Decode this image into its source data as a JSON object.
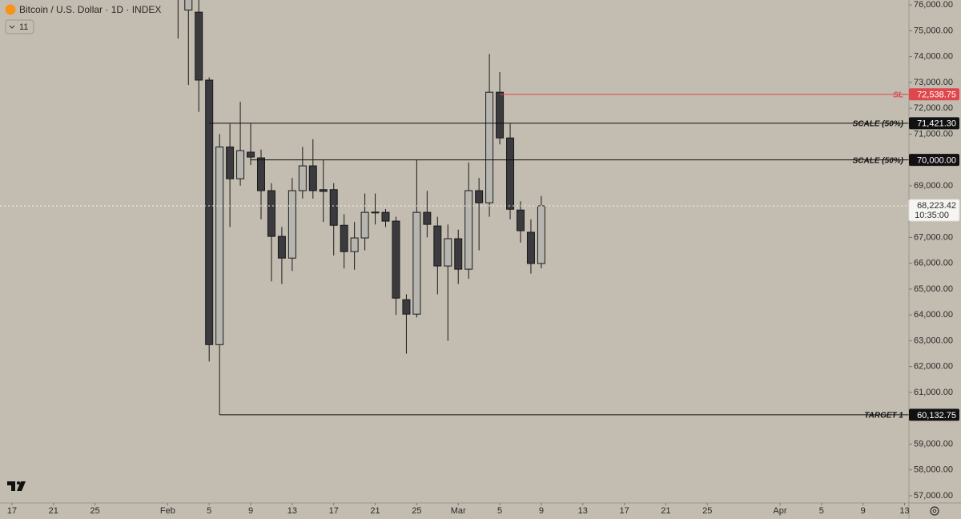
{
  "header": {
    "title": "Bitcoin / U.S. Dollar · 1D · INDEX",
    "indicator_count": 11
  },
  "chart_data": {
    "type": "candlestick",
    "x": [
      "02-02",
      "02-03",
      "02-04",
      "02-05",
      "02-06",
      "02-07",
      "02-08",
      "02-09",
      "02-10",
      "02-11",
      "02-12",
      "02-13",
      "02-14",
      "02-15",
      "02-16",
      "02-17",
      "02-18",
      "02-19",
      "02-20",
      "02-21",
      "02-22",
      "02-23",
      "02-24",
      "02-25",
      "02-26",
      "02-27",
      "02-28",
      "03-01",
      "03-02",
      "03-03",
      "03-04",
      "03-05",
      "03-06",
      "03-07",
      "03-08",
      "03-09"
    ],
    "open": [
      77200,
      75800,
      75720,
      73090,
      62850,
      70500,
      69270,
      70300,
      70080,
      68810,
      67040,
      66200,
      68810,
      69770,
      68850,
      68850,
      67470,
      66450,
      66980,
      67950,
      67970,
      67630,
      64590,
      64030,
      67970,
      67444,
      65894,
      66950,
      65770,
      68810,
      68340,
      72620,
      70850,
      68060,
      67200,
      65990
    ],
    "high": [
      78000,
      77000,
      76300,
      73200,
      71000,
      71400,
      72250,
      71400,
      70400,
      69100,
      67400,
      69300,
      70500,
      70800,
      70000,
      69100,
      67900,
      67600,
      68700,
      68700,
      68100,
      67800,
      64800,
      70000,
      68800,
      67800,
      67500,
      67300,
      69900,
      69300,
      74100,
      73400,
      71400,
      68400,
      67700,
      68600
    ],
    "low": [
      74700,
      72900,
      71860,
      62200,
      60130,
      67400,
      69000,
      69800,
      67700,
      65300,
      65200,
      65700,
      68500,
      68500,
      67600,
      66300,
      65800,
      65750,
      66500,
      67500,
      67400,
      64000,
      62500,
      63900,
      67000,
      64800,
      63000,
      65200,
      65400,
      66500,
      67800,
      70600,
      67700,
      66800,
      65600,
      65800
    ],
    "close": [
      76400,
      76500,
      73090,
      62850,
      70500,
      69270,
      70360,
      70110,
      68810,
      67040,
      66200,
      68810,
      69770,
      68810,
      68780,
      67470,
      66450,
      66980,
      67970,
      67980,
      67630,
      64650,
      64030,
      67970,
      67505,
      65894,
      66950,
      65770,
      68810,
      68340,
      72620,
      70850,
      68090,
      67260,
      65990,
      68223.42
    ],
    "colors": {
      "up": "#b7b5b0",
      "down": "#3a3a3f",
      "border": "#1a1a1a"
    },
    "xlim": [
      "01-16",
      "04-13"
    ],
    "xticks": [
      {
        "value": "01-17",
        "label": "17"
      },
      {
        "value": "01-21",
        "label": "21"
      },
      {
        "value": "01-25",
        "label": "25"
      },
      {
        "value": "02-01",
        "label": "Feb"
      },
      {
        "value": "02-05",
        "label": "5"
      },
      {
        "value": "02-09",
        "label": "9"
      },
      {
        "value": "02-13",
        "label": "13"
      },
      {
        "value": "02-17",
        "label": "17"
      },
      {
        "value": "02-21",
        "label": "21"
      },
      {
        "value": "02-25",
        "label": "25"
      },
      {
        "value": "03-01",
        "label": "Mar"
      },
      {
        "value": "03-05",
        "label": "5"
      },
      {
        "value": "03-09",
        "label": "9"
      },
      {
        "value": "03-13",
        "label": "13"
      },
      {
        "value": "03-17",
        "label": "17"
      },
      {
        "value": "03-21",
        "label": "21"
      },
      {
        "value": "03-25",
        "label": "25"
      },
      {
        "value": "04-01",
        "label": "Apr"
      },
      {
        "value": "04-05",
        "label": "5"
      },
      {
        "value": "04-09",
        "label": "9"
      },
      {
        "value": "04-13",
        "label": "13"
      }
    ],
    "ylim": [
      56720,
      76190
    ],
    "yticks": [
      {
        "value": 76000,
        "label": "76,000.00"
      },
      {
        "value": 75000,
        "label": "75,000.00"
      },
      {
        "value": 74000,
        "label": "74,000.00"
      },
      {
        "value": 73000,
        "label": "73,000.00"
      },
      {
        "value": 72000,
        "label": "72,000.00"
      },
      {
        "value": 71000,
        "label": "71,000.00"
      },
      {
        "value": 69000,
        "label": "69,000.00"
      },
      {
        "value": 67000,
        "label": "67,000.00"
      },
      {
        "value": 66000,
        "label": "66,000.00"
      },
      {
        "value": 65000,
        "label": "65,000.00"
      },
      {
        "value": 64000,
        "label": "64,000.00"
      },
      {
        "value": 63000,
        "label": "63,000.00"
      },
      {
        "value": 62000,
        "label": "62,000.00"
      },
      {
        "value": 61000,
        "label": "61,000.00"
      },
      {
        "value": 59000,
        "label": "59,000.00"
      },
      {
        "value": 58000,
        "label": "58,000.00"
      },
      {
        "value": 57000,
        "label": "57,000.00"
      }
    ],
    "lines": [
      {
        "label": "SL",
        "value": 72538.75,
        "value_label": "72,538.75",
        "start": "03-05",
        "color": "#e0474c"
      },
      {
        "label": "SCALE (50%)",
        "value": 71421.3,
        "value_label": "71,421.30",
        "start": "02-05",
        "color": "#111111"
      },
      {
        "label": "SCALE (50%)",
        "value": 70000.0,
        "value_label": "70,000.00",
        "start": "02-09",
        "color": "#111111"
      },
      {
        "label": "TARGET 1",
        "value": 60132.75,
        "value_label": "60,132.75",
        "start": "02-06",
        "color": "#111111"
      }
    ],
    "last_price": {
      "value": 68223.42,
      "value_label": "68,223.42",
      "countdown": "10:35:00"
    }
  }
}
